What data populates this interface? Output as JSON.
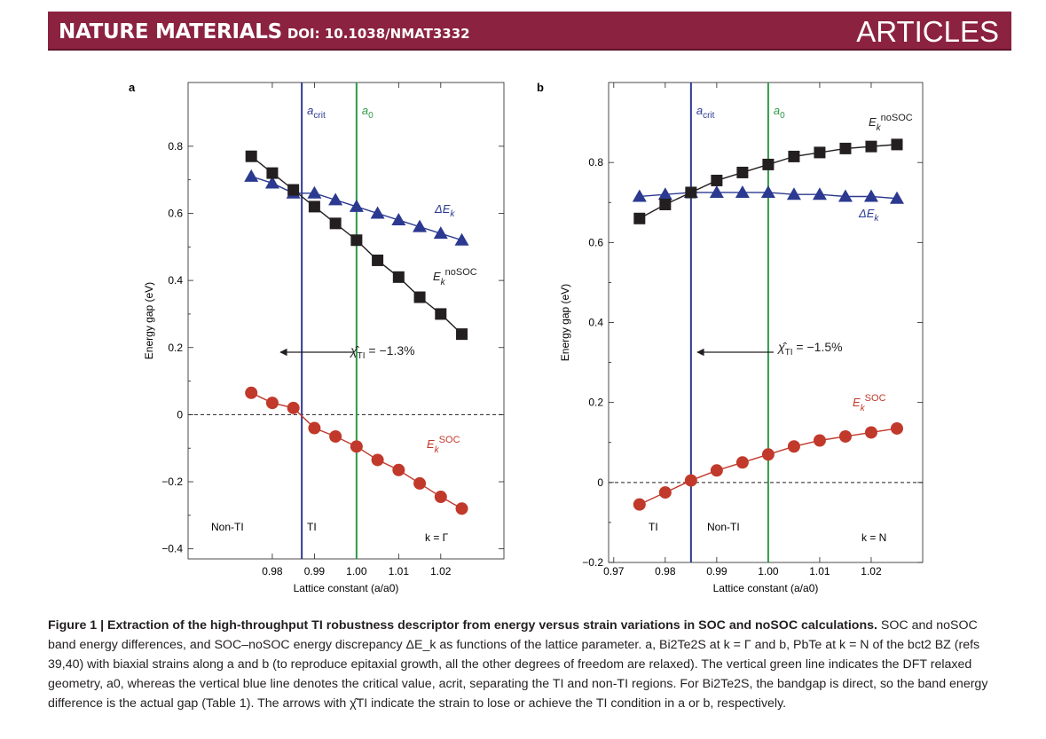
{
  "header": {
    "journal": "NATURE MATERIALS",
    "doi": "DOI: 10.1038/NMAT3332",
    "section": "ARTICLES"
  },
  "caption": {
    "label": "Figure 1 | Extraction of the high-throughput TI robustness descriptor from energy versus strain variations in SOC and noSOC calculations.",
    "text": "SOC and noSOC band energy differences, and SOC–noSOC energy discrepancy ΔE_k as functions of the lattice parameter. a, Bi2Te2S at k = Γ and b, PbTe at k = N of the bct2 BZ (refs 39,40) with biaxial strains along a and b (to reproduce epitaxial growth, all the other degrees of freedom are relaxed). The vertical green line indicates the DFT relaxed geometry, a0, whereas the vertical blue line denotes the critical value, acrit, separating the TI and non-TI regions. For Bi2Te2S, the bandgap is direct, so the band energy difference is the actual gap (Table 1). The arrows with χ̂TI indicate the strain to lose or achieve the TI condition in a or b, respectively."
  },
  "chart_data": [
    {
      "type": "scatter",
      "panel": "a",
      "xlabel": "Lattice constant (a/a0)",
      "ylabel": "Energy gap (eV)",
      "xlim": [
        0.96,
        1.035
      ],
      "ylim": [
        -0.43,
        0.99
      ],
      "xticks": [
        0.98,
        0.99,
        1.0,
        1.01,
        1.02
      ],
      "xtick_labels": [
        "0.98",
        "0.99",
        "1.00",
        "1.01",
        "1.02"
      ],
      "yticks": [
        -0.4,
        -0.2,
        0,
        0.2,
        0.4,
        0.6,
        0.8
      ],
      "ytick_labels": [
        "−0.4",
        "−0.2",
        "0",
        "0.2",
        "0.4",
        "0.6",
        "0.8"
      ],
      "a_crit": 0.987,
      "a0": 1.0,
      "series": [
        {
          "name": "ΔE_k",
          "marker": "triangle",
          "color": "#2b3990",
          "x": [
            0.975,
            0.98,
            0.985,
            0.99,
            0.995,
            1.0,
            1.005,
            1.01,
            1.015,
            1.02,
            1.025
          ],
          "y": [
            0.71,
            0.69,
            0.66,
            0.66,
            0.64,
            0.62,
            0.6,
            0.58,
            0.56,
            0.54,
            0.52
          ]
        },
        {
          "name": "E_k^noSOC",
          "marker": "square",
          "color": "#231f20",
          "x": [
            0.975,
            0.98,
            0.985,
            0.99,
            0.995,
            1.0,
            1.005,
            1.01,
            1.015,
            1.02,
            1.025
          ],
          "y": [
            0.77,
            0.72,
            0.67,
            0.62,
            0.57,
            0.52,
            0.46,
            0.41,
            0.35,
            0.3,
            0.24
          ]
        },
        {
          "name": "E_k^SOC",
          "marker": "circle",
          "color": "#c1392b",
          "x": [
            0.975,
            0.98,
            0.985,
            0.99,
            0.995,
            1.0,
            1.005,
            1.01,
            1.015,
            1.02,
            1.025
          ],
          "y": [
            0.065,
            0.035,
            0.02,
            -0.04,
            -0.065,
            -0.095,
            -0.135,
            -0.165,
            -0.205,
            -0.245,
            -0.28
          ]
        }
      ],
      "annotations": {
        "crit": "crit",
        "zero": "0",
        "chi": "= −1.3%",
        "left_region": "Non-TI",
        "right_region": "TI",
        "kpoint": "k = Γ",
        "delta_label": "ΔE",
        "nosoc_label": "noSOC",
        "soc_label": "SOC",
        "sub_k": "k",
        "sub_TI": "TI"
      }
    },
    {
      "type": "scatter",
      "panel": "b",
      "xlabel": "Lattice constant (a/a0)",
      "ylabel": "Energy gap (eV)",
      "xlim": [
        0.969,
        1.03
      ],
      "ylim": [
        -0.2,
        1.0
      ],
      "xticks": [
        0.97,
        0.98,
        0.99,
        1.0,
        1.01,
        1.02
      ],
      "xtick_labels": [
        "0.97",
        "0.98",
        "0.99",
        "1.00",
        "1.01",
        "1.02"
      ],
      "yticks": [
        -0.2,
        0,
        0.2,
        0.4,
        0.6,
        0.8
      ],
      "ytick_labels": [
        "−0.2",
        "0",
        "0.2",
        "0.4",
        "0.6",
        "0.8"
      ],
      "a_crit": 0.985,
      "a0": 1.0,
      "series": [
        {
          "name": "ΔE_k",
          "marker": "triangle",
          "color": "#2b3990",
          "x": [
            0.975,
            0.98,
            0.985,
            0.99,
            0.995,
            1.0,
            1.005,
            1.01,
            1.015,
            1.02,
            1.025
          ],
          "y": [
            0.715,
            0.72,
            0.725,
            0.725,
            0.725,
            0.725,
            0.72,
            0.72,
            0.715,
            0.715,
            0.71
          ]
        },
        {
          "name": "E_k^noSOC",
          "marker": "square",
          "color": "#231f20",
          "x": [
            0.975,
            0.98,
            0.985,
            0.99,
            0.995,
            1.0,
            1.005,
            1.01,
            1.015,
            1.02,
            1.025
          ],
          "y": [
            0.66,
            0.695,
            0.725,
            0.755,
            0.775,
            0.795,
            0.815,
            0.825,
            0.835,
            0.84,
            0.845
          ]
        },
        {
          "name": "E_k^SOC",
          "marker": "circle",
          "color": "#c1392b",
          "x": [
            0.975,
            0.98,
            0.985,
            0.99,
            0.995,
            1.0,
            1.005,
            1.01,
            1.015,
            1.02,
            1.025
          ],
          "y": [
            -0.055,
            -0.025,
            0.005,
            0.03,
            0.05,
            0.07,
            0.09,
            0.105,
            0.115,
            0.125,
            0.135
          ]
        }
      ],
      "annotations": {
        "crit": "crit",
        "zero": "0",
        "chi": "= −1.5%",
        "left_region": "TI",
        "right_region": "Non-TI",
        "kpoint": "k = N",
        "delta_label": "ΔE",
        "nosoc_label": "noSOC",
        "soc_label": "SOC",
        "sub_k": "k",
        "sub_TI": "TI"
      }
    }
  ]
}
